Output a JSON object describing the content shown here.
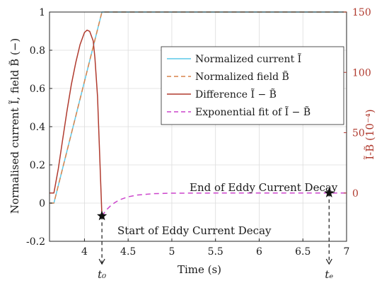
{
  "chart_data": {
    "type": "line",
    "xlabel": "Time (s)",
    "ylabel_left": "Normalised current Ĩ, field B̃ (−)",
    "ylabel_right": "Ĩ-B̃ (10⁻⁴)",
    "xlim": [
      3.6,
      7.0
    ],
    "ylim_left": [
      -0.2,
      1.0
    ],
    "ylim_right": [
      -40,
      150
    ],
    "xticks": [
      "4",
      "4.5",
      "5",
      "5.5",
      "6",
      "6.5",
      "7"
    ],
    "xtick_values": [
      4,
      4.5,
      5,
      5.5,
      6,
      6.5,
      7
    ],
    "yticks_left": [
      "-0.2",
      "0",
      "0.2",
      "0.4",
      "0.6",
      "0.8",
      "1"
    ],
    "ytick_left_values": [
      -0.2,
      0,
      0.2,
      0.4,
      0.6,
      0.8,
      1
    ],
    "yticks_right": [
      "0",
      "50",
      "100",
      "150"
    ],
    "ytick_right_values": [
      0,
      50,
      100,
      150
    ],
    "grid": true,
    "legend_position": "center-right",
    "legend": [
      "Normalized current Ĩ",
      "Normalized field B̃",
      "Difference Ĩ − B̃",
      "Exponential fit of Ĩ − B̃"
    ],
    "series": [
      {
        "axis": "left",
        "color": "#5bc8e8",
        "dash": "solid",
        "x": [
          3.6,
          3.65,
          4.2,
          7.0
        ],
        "y": [
          0,
          0,
          1,
          1
        ]
      },
      {
        "axis": "left",
        "color": "#d9844a",
        "dash": "dashed",
        "x": [
          3.6,
          3.65,
          4.2,
          7.0
        ],
        "y": [
          0,
          0,
          1,
          1
        ]
      },
      {
        "axis": "right",
        "color": "#b03a2e",
        "dash": "solid",
        "x": [
          3.6,
          3.65,
          3.7,
          3.75,
          3.8,
          3.85,
          3.9,
          3.95,
          4.0,
          4.03,
          4.06,
          4.1,
          4.12,
          4.15,
          4.17,
          4.19,
          4.2
        ],
        "y": [
          0,
          0,
          20,
          44,
          68,
          90,
          108,
          123,
          133,
          135,
          134,
          126,
          112,
          80,
          40,
          0,
          -19
        ]
      },
      {
        "axis": "right",
        "color": "#cc44cc",
        "dash": "dashed",
        "x": [
          4.2,
          4.25,
          4.3,
          4.35,
          4.4,
          4.5,
          4.6,
          4.8,
          5.0,
          5.5,
          6.0,
          6.5,
          6.8,
          7.0
        ],
        "y": [
          -19,
          -14,
          -10.5,
          -7.8,
          -5.7,
          -3.1,
          -1.7,
          -0.5,
          -0.15,
          0,
          0,
          0,
          0,
          0
        ]
      }
    ],
    "markers": [
      {
        "x": 4.2,
        "y_right": -19,
        "symbol": "star",
        "label": "t₀"
      },
      {
        "x": 6.8,
        "y_right": 0,
        "symbol": "star",
        "label": "tₑ"
      }
    ],
    "annotations": [
      "Start of Eddy Current Decay",
      "End of Eddy Current Decay"
    ]
  }
}
